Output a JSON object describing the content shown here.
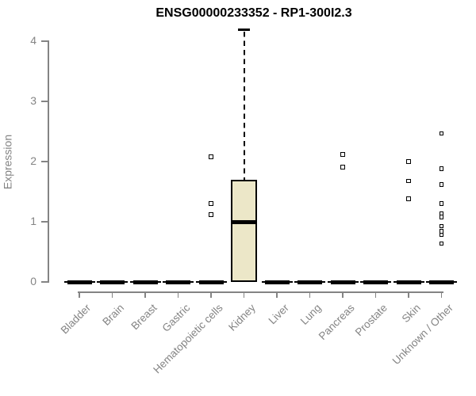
{
  "colors": {
    "background": "#FFFFFF",
    "title": "#000000",
    "axis": "#848484",
    "tick_label": "#848484",
    "box_fill": "#ECE7C8",
    "box_border": "#000000",
    "median": "#000000",
    "whisker": "#000000",
    "outlier_border": "#000000",
    "outlier_fill": "#FFFFFF"
  },
  "chart_data": {
    "type": "boxplot",
    "title": "ENSG00000233352 - RP1-300I2.3",
    "xlabel": "",
    "ylabel": "Expression",
    "ylim": [
      0,
      4
    ],
    "yticks": [
      0,
      1,
      2,
      3,
      4
    ],
    "grid": false,
    "legend": "none",
    "categories": [
      "Bladder",
      "Brain",
      "Breast",
      "Gastric",
      "Hematopoietic cells",
      "Kidney",
      "Liver",
      "Lung",
      "Pancreas",
      "Prostate",
      "Skin",
      "Unknown / Other"
    ],
    "boxes": [
      {
        "category": "Bladder",
        "whisker_low": 0,
        "q1": 0,
        "median": 0,
        "q3": 0,
        "whisker_high": 0,
        "outliers": []
      },
      {
        "category": "Brain",
        "whisker_low": 0,
        "q1": 0,
        "median": 0,
        "q3": 0,
        "whisker_high": 0,
        "outliers": []
      },
      {
        "category": "Breast",
        "whisker_low": 0,
        "q1": 0,
        "median": 0,
        "q3": 0,
        "whisker_high": 0,
        "outliers": []
      },
      {
        "category": "Gastric",
        "whisker_low": 0,
        "q1": 0,
        "median": 0,
        "q3": 0,
        "whisker_high": 0,
        "outliers": []
      },
      {
        "category": "Hematopoietic cells",
        "whisker_low": 0,
        "q1": 0,
        "median": 0,
        "q3": 0,
        "whisker_high": 0,
        "outliers": [
          2.08,
          1.3,
          1.12
        ]
      },
      {
        "category": "Kidney",
        "whisker_low": 0,
        "q1": 0,
        "median": 1.0,
        "q3": 1.7,
        "whisker_high": 4.19,
        "outliers": []
      },
      {
        "category": "Liver",
        "whisker_low": 0,
        "q1": 0,
        "median": 0,
        "q3": 0,
        "whisker_high": 0,
        "outliers": []
      },
      {
        "category": "Lung",
        "whisker_low": 0,
        "q1": 0,
        "median": 0,
        "q3": 0,
        "whisker_high": 0,
        "outliers": []
      },
      {
        "category": "Pancreas",
        "whisker_low": 0,
        "q1": 0,
        "median": 0,
        "q3": 0,
        "whisker_high": 0,
        "outliers": [
          2.12,
          1.91
        ]
      },
      {
        "category": "Prostate",
        "whisker_low": 0,
        "q1": 0,
        "median": 0,
        "q3": 0,
        "whisker_high": 0,
        "outliers": []
      },
      {
        "category": "Skin",
        "whisker_low": 0,
        "q1": 0,
        "median": 0,
        "q3": 0,
        "whisker_high": 0,
        "outliers": [
          2.0,
          1.68,
          1.38
        ]
      },
      {
        "category": "Unknown / Other",
        "whisker_low": 0,
        "q1": 0,
        "median": 0,
        "q3": 0,
        "whisker_high": 0,
        "outliers": [
          2.47,
          1.88,
          1.62,
          1.3,
          1.14,
          1.08,
          0.93,
          0.84,
          0.78,
          0.64
        ]
      }
    ]
  }
}
